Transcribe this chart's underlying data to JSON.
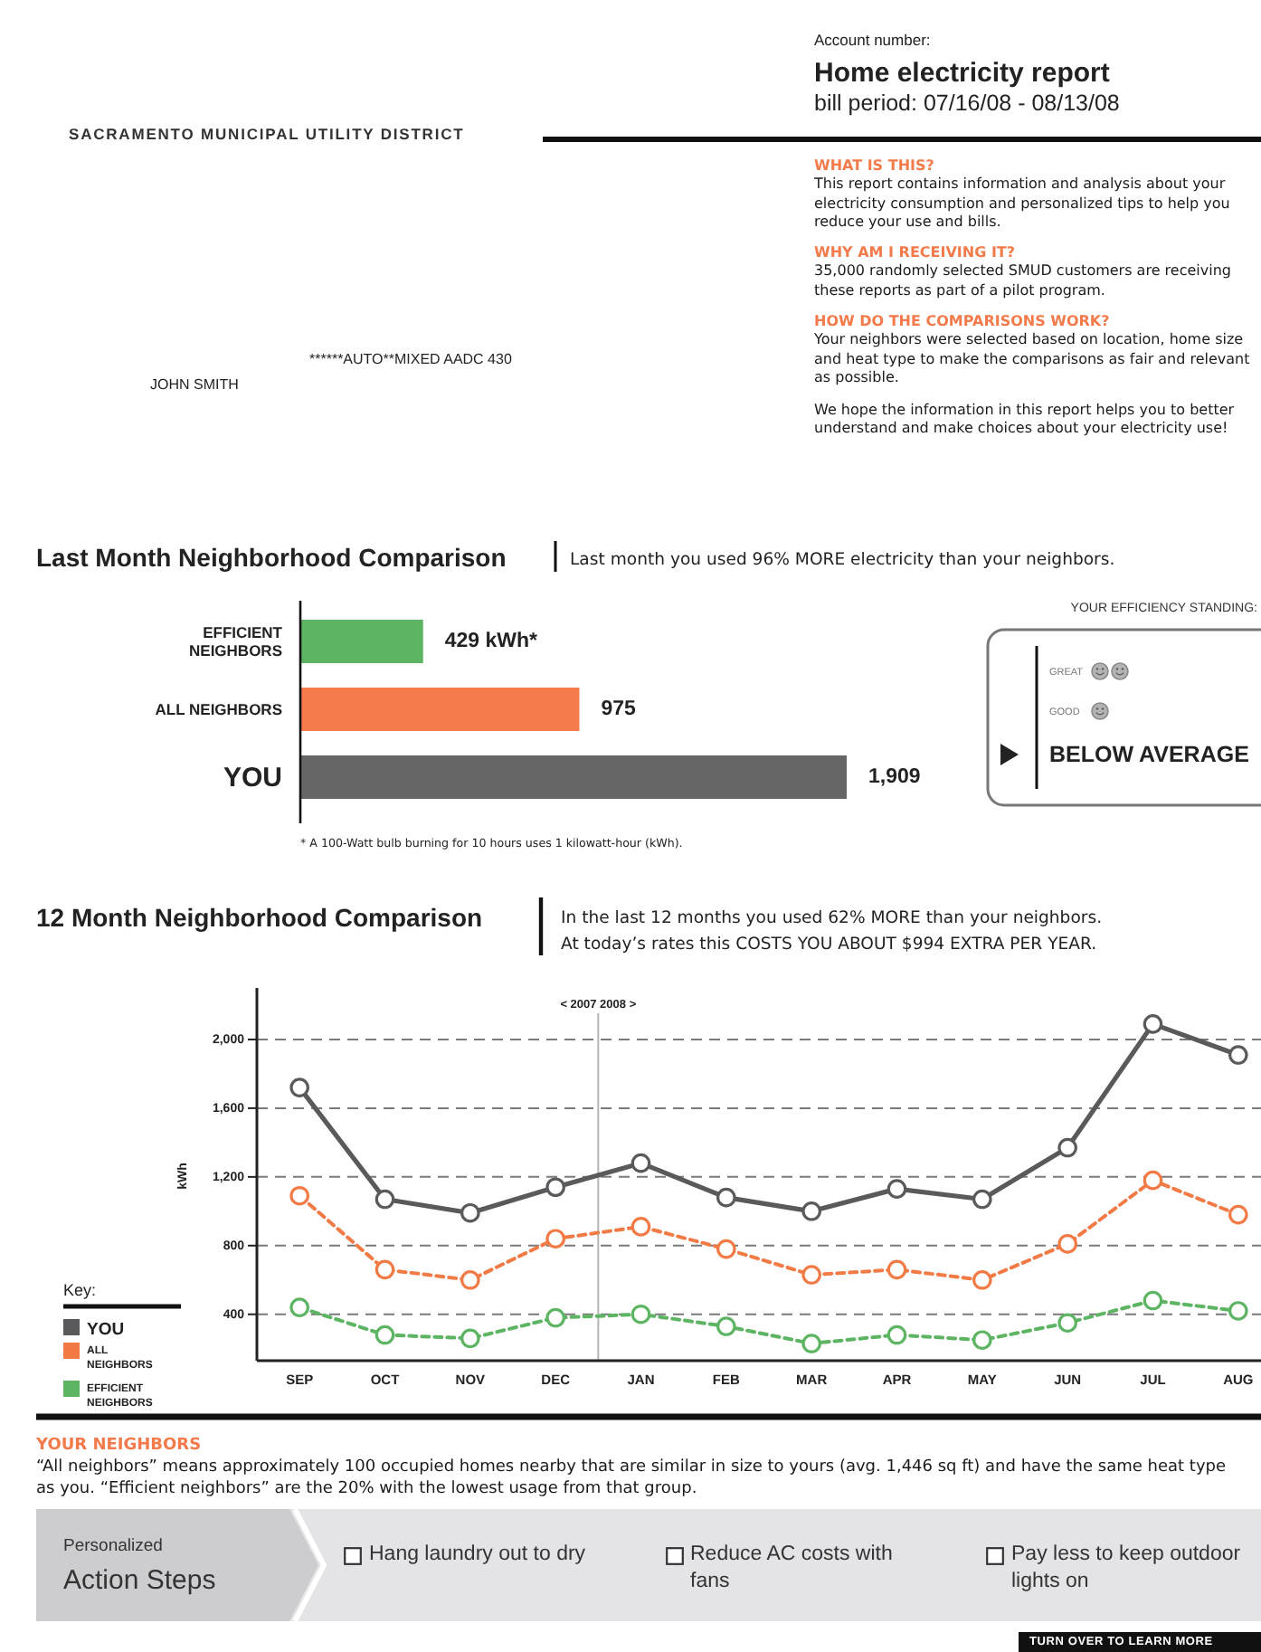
{
  "chart_data": [
    {
      "type": "other",
      "annotations": [
        "SACRAMENTO MUNICIPAL UTILITY DISTRICT"
      ]
    },
    {
      "type": "other",
      "title": "Home electricity report",
      "subtitle": "bill period: 07/16/08 - 08/13/08",
      "annotations": [
        "Account number:"
      ]
    },
    {
      "type": "other",
      "title": "WHAT IS THIS?",
      "annotations": [
        "This report contains information and analysis about your electricity consumption and personalized tips to help you reduce your use and bills."
      ]
    },
    {
      "type": "other",
      "title": "WHY AM I RECEIVING IT?",
      "annotations": [
        "35,000 randomly selected SMUD customers are receiving these reports as part of a pilot program."
      ]
    },
    {
      "type": "other",
      "title": "HOW DO THE COMPARISONS WORK?",
      "annotations": [
        "Your neighbors were selected based on location, home size and heat type to make the comparisons as fair and relevant as possible."
      ]
    },
    {
      "type": "other",
      "annotations": [
        "We hope the information in this report helps you to better understand and make choices about your electricity use!"
      ]
    },
    {
      "type": "other",
      "annotations": [
        "JOHN SMITH",
        "******AUTO**MIXED AADC 430"
      ]
    },
    {
      "type": "bar",
      "orientation": "horizontal",
      "title": "Last Month Neighborhood Comparison",
      "subtitle": "Last month you used 96% MORE electricity than your neighbors.",
      "categories": [
        "EFFICIENT NEIGHBORS",
        "ALL NEIGHBORS",
        "YOU"
      ],
      "values": [
        429,
        975,
        1909
      ],
      "colors": [
        "#5db563",
        "#f47c4c",
        "#666666"
      ],
      "value_labels": [
        "429 kWh*",
        "975",
        "1,909"
      ],
      "annotations": [
        "* A 100-Watt bulb burning for 10 hours uses 1 kilowatt-hour (kWh)."
      ]
    },
    {
      "type": "other",
      "title": "YOUR EFFICIENCY STANDING:",
      "annotations": [
        "GREAT",
        "GOOD",
        "BELOW AVERAGE"
      ]
    },
    {
      "type": "line",
      "title": "12 Month Neighborhood Comparison",
      "subtitle": "In the last 12 months you used 62% MORE than your neighbors. At today’s rates this COSTS YOU ABOUT $994 EXTRA PER YEAR.",
      "ylabel": "kWh",
      "legend_title": "Key:",
      "legend": "left",
      "grid": "y",
      "marker": "circle",
      "categories": [
        "SEP",
        "OCT",
        "NOV",
        "DEC",
        "JAN",
        "FEB",
        "MAR",
        "APR",
        "MAY",
        "JUN",
        "JUL",
        "AUG"
      ],
      "ylim": [
        130,
        2300
      ],
      "yticks": [
        400,
        800,
        {
          "value": 1200,
          "label": "1,200"
        },
        {
          "value": 1600,
          "label": "1,600"
        },
        {
          "value": 2000,
          "label": "2,000"
        }
      ],
      "series": [
        {
          "name": "YOU",
          "color": "#5a5a5c",
          "line_style": "solid",
          "values": [
            1720,
            1070,
            990,
            1140,
            1280,
            1080,
            1000,
            1130,
            1070,
            1370,
            2090,
            1910
          ]
        },
        {
          "name": "ALL NEIGHBORS",
          "color": "#f27a45",
          "line_style": "dashed",
          "values": [
            1090,
            660,
            600,
            840,
            910,
            780,
            630,
            660,
            600,
            810,
            1180,
            980
          ]
        },
        {
          "name": "EFFICIENT NEIGHBORS",
          "color": "#5db563",
          "line_style": "dashed",
          "values": [
            440,
            280,
            260,
            380,
            400,
            330,
            230,
            280,
            250,
            350,
            480,
            420
          ]
        }
      ],
      "ref_lines": [
        {
          "axis": "x",
          "value": "JAN",
          "label": "< 2007 2008 >",
          "color": "#b5b5b5"
        }
      ]
    },
    {
      "type": "other",
      "title": "YOUR NEIGHBORS",
      "annotations": [
        "“All neighbors” means approximately 100 occupied homes nearby that are similar in size to yours (avg. 1,446 sq ft) and have the same heat type as you. “Efficient neighbors” are the 20% with the lowest usage from that group."
      ]
    },
    {
      "type": "other",
      "title": "Action Steps",
      "subtitle": "Personalized",
      "annotations": [
        "Hang laundry out to dry",
        "Reduce AC costs with fans",
        "Pay less to keep outdoor lights on"
      ]
    },
    {
      "type": "other",
      "annotations": [
        "TURN OVER TO LEARN MORE"
      ]
    }
  ]
}
